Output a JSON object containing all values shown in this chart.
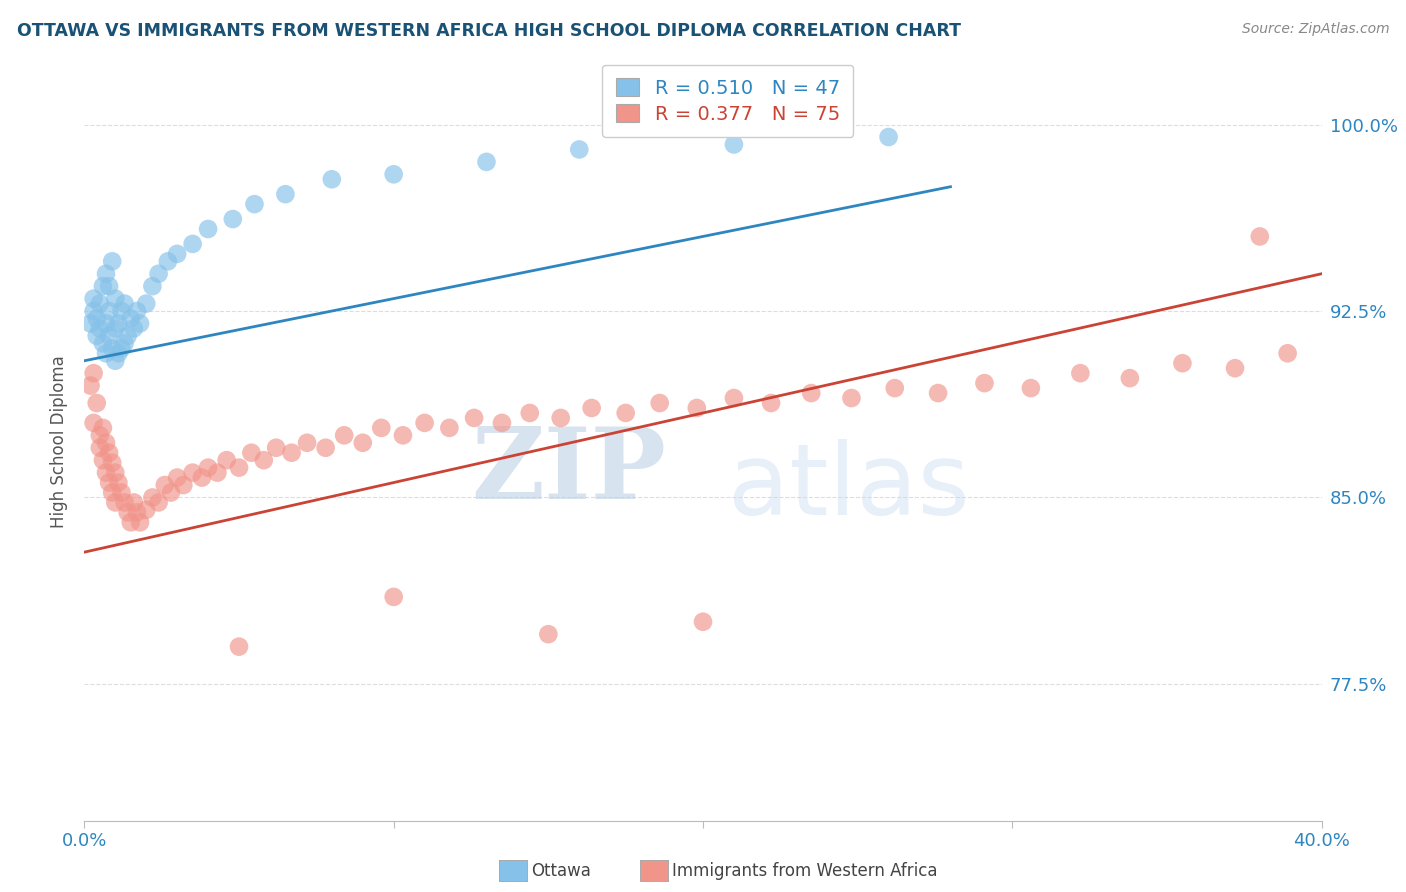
{
  "title": "OTTAWA VS IMMIGRANTS FROM WESTERN AFRICA HIGH SCHOOL DIPLOMA CORRELATION CHART",
  "source": "Source: ZipAtlas.com",
  "ylabel": "High School Diploma",
  "xlim": [
    0.0,
    0.4
  ],
  "ylim": [
    0.72,
    1.025
  ],
  "yticks": [
    0.775,
    0.85,
    0.925,
    1.0
  ],
  "ytick_labels": [
    "77.5%",
    "85.0%",
    "92.5%",
    "100.0%"
  ],
  "ottawa_R": 0.51,
  "ottawa_N": 47,
  "immigrants_R": 0.377,
  "immigrants_N": 75,
  "ottawa_color": "#85c1e9",
  "immigrants_color": "#f1948a",
  "trend_ottawa_color": "#2e86c1",
  "trend_immigrants_color": "#cb4335",
  "watermark_zip": "ZIP",
  "watermark_atlas": "atlas",
  "background_color": "#ffffff",
  "grid_color": "#dddddd",
  "title_color": "#1a5276",
  "axis_label_color": "#555555",
  "tick_color": "#2e86c1",
  "ottawa_x": [
    0.002,
    0.003,
    0.003,
    0.004,
    0.004,
    0.005,
    0.005,
    0.006,
    0.006,
    0.007,
    0.007,
    0.007,
    0.008,
    0.008,
    0.008,
    0.009,
    0.009,
    0.01,
    0.01,
    0.01,
    0.011,
    0.011,
    0.012,
    0.012,
    0.013,
    0.013,
    0.014,
    0.015,
    0.016,
    0.017,
    0.018,
    0.02,
    0.022,
    0.024,
    0.027,
    0.03,
    0.035,
    0.04,
    0.048,
    0.055,
    0.065,
    0.08,
    0.1,
    0.13,
    0.16,
    0.21,
    0.26
  ],
  "ottawa_y": [
    0.92,
    0.925,
    0.93,
    0.915,
    0.922,
    0.918,
    0.928,
    0.912,
    0.935,
    0.908,
    0.92,
    0.94,
    0.915,
    0.925,
    0.935,
    0.91,
    0.945,
    0.905,
    0.918,
    0.93,
    0.908,
    0.92,
    0.91,
    0.925,
    0.912,
    0.928,
    0.915,
    0.922,
    0.918,
    0.925,
    0.92,
    0.928,
    0.935,
    0.94,
    0.945,
    0.948,
    0.952,
    0.958,
    0.962,
    0.968,
    0.972,
    0.978,
    0.98,
    0.985,
    0.99,
    0.992,
    0.995
  ],
  "immigrants_x": [
    0.002,
    0.003,
    0.003,
    0.004,
    0.005,
    0.005,
    0.006,
    0.006,
    0.007,
    0.007,
    0.008,
    0.008,
    0.009,
    0.009,
    0.01,
    0.01,
    0.011,
    0.012,
    0.013,
    0.014,
    0.015,
    0.016,
    0.017,
    0.018,
    0.02,
    0.022,
    0.024,
    0.026,
    0.028,
    0.03,
    0.032,
    0.035,
    0.038,
    0.04,
    0.043,
    0.046,
    0.05,
    0.054,
    0.058,
    0.062,
    0.067,
    0.072,
    0.078,
    0.084,
    0.09,
    0.096,
    0.103,
    0.11,
    0.118,
    0.126,
    0.135,
    0.144,
    0.154,
    0.164,
    0.175,
    0.186,
    0.198,
    0.21,
    0.222,
    0.235,
    0.248,
    0.262,
    0.276,
    0.291,
    0.306,
    0.322,
    0.338,
    0.355,
    0.372,
    0.389,
    0.05,
    0.1,
    0.15,
    0.2,
    0.38
  ],
  "immigrants_y": [
    0.895,
    0.9,
    0.88,
    0.888,
    0.875,
    0.87,
    0.878,
    0.865,
    0.872,
    0.86,
    0.868,
    0.856,
    0.864,
    0.852,
    0.86,
    0.848,
    0.856,
    0.852,
    0.848,
    0.844,
    0.84,
    0.848,
    0.844,
    0.84,
    0.845,
    0.85,
    0.848,
    0.855,
    0.852,
    0.858,
    0.855,
    0.86,
    0.858,
    0.862,
    0.86,
    0.865,
    0.862,
    0.868,
    0.865,
    0.87,
    0.868,
    0.872,
    0.87,
    0.875,
    0.872,
    0.878,
    0.875,
    0.88,
    0.878,
    0.882,
    0.88,
    0.884,
    0.882,
    0.886,
    0.884,
    0.888,
    0.886,
    0.89,
    0.888,
    0.892,
    0.89,
    0.894,
    0.892,
    0.896,
    0.894,
    0.9,
    0.898,
    0.904,
    0.902,
    0.908,
    0.79,
    0.81,
    0.795,
    0.8,
    0.955
  ],
  "trend_ottawa_x0": 0.0,
  "trend_ottawa_x1": 0.28,
  "trend_ottawa_y0": 0.905,
  "trend_ottawa_y1": 0.975,
  "trend_immigrants_x0": 0.0,
  "trend_immigrants_x1": 0.4,
  "trend_immigrants_y0": 0.828,
  "trend_immigrants_y1": 0.94
}
